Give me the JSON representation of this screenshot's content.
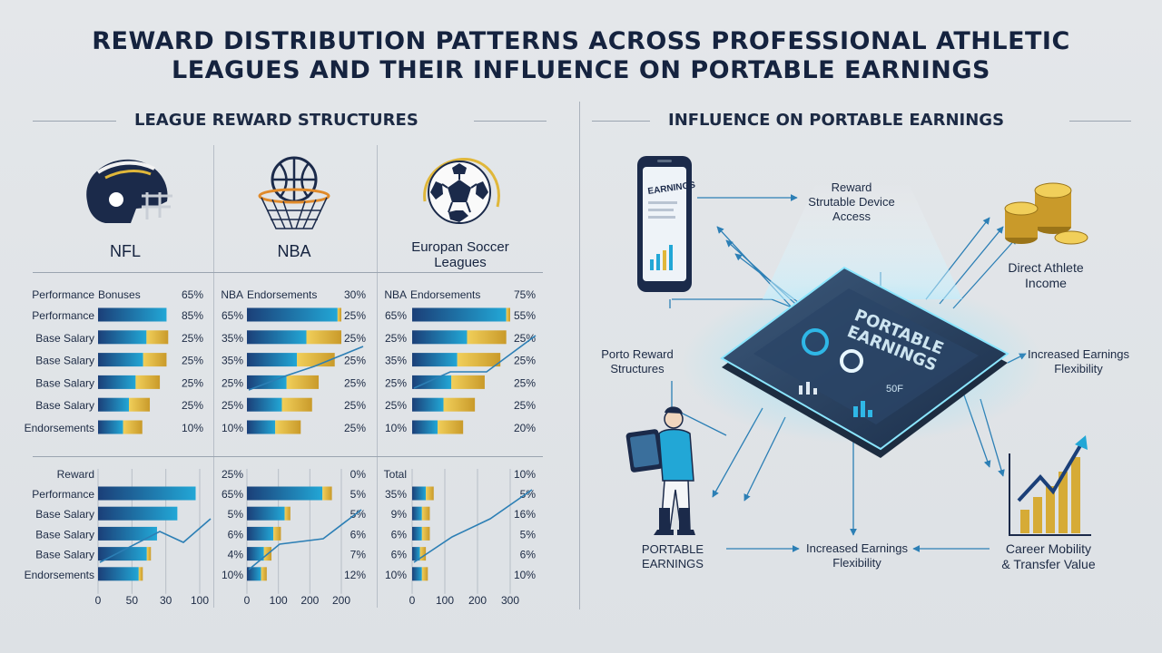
{
  "title": {
    "line1": "REWARD DISTRIBUTION PATTERNS ACROSS PROFESSIONAL ATHLETIC",
    "line2": "LEAGUES AND THEIR INFLUENCE ON PORTABLE EARNINGS"
  },
  "left_section": {
    "heading": "LEAGUE REWARD STRUCTURES"
  },
  "right_section": {
    "heading": "INFLUENCE ON PORTABLE EARNINGS"
  },
  "leagues": {
    "nfl": {
      "name": "NFL",
      "icon": "football-helmet-icon"
    },
    "nba": {
      "name": "NBA",
      "icon": "basketball-hoop-icon"
    },
    "soccer": {
      "name_line1": "Europan Soccer",
      "name_line2": "Leagues",
      "icon": "soccer-ball-icon"
    }
  },
  "colors": {
    "bar_blue": "#1f5f9e",
    "bar_cyan": "#22a7d6",
    "bar_gold": "#e0b73a",
    "navy": "#15233f"
  },
  "chart_data": [
    {
      "type": "bar",
      "panel": "NFL upper",
      "header": {
        "label": "Performance",
        "label2": "Bonuses",
        "pct": "65%"
      },
      "rows": [
        {
          "label": "Performance",
          "pct": "85%",
          "blue": 0.82,
          "gold": 0.0
        },
        {
          "label": "Base Salary",
          "pct": "25%",
          "blue": 0.58,
          "gold": 0.26
        },
        {
          "label": "Base Salary",
          "pct": "25%",
          "blue": 0.54,
          "gold": 0.28
        },
        {
          "label": "Base Salary",
          "pct": "25%",
          "blue": 0.45,
          "gold": 0.29
        },
        {
          "label": "Base Salary",
          "pct": "25%",
          "blue": 0.37,
          "gold": 0.25
        },
        {
          "label": "Endorsements",
          "pct": "10%",
          "blue": 0.3,
          "gold": 0.23
        }
      ]
    },
    {
      "type": "bar",
      "panel": "NBA upper",
      "header": {
        "label": "NBA",
        "label2": "Endorsements",
        "pct": "30%"
      },
      "rows": [
        {
          "label": "65%",
          "pct": "25%",
          "blue": 0.96,
          "gold": 0.04
        },
        {
          "label": "35%",
          "pct": "25%",
          "blue": 0.63,
          "gold": 0.37
        },
        {
          "label": "35%",
          "pct": "25%",
          "blue": 0.53,
          "gold": 0.4
        },
        {
          "label": "25%",
          "pct": "25%",
          "blue": 0.42,
          "gold": 0.34
        },
        {
          "label": "25%",
          "pct": "25%",
          "blue": 0.37,
          "gold": 0.32
        },
        {
          "label": "10%",
          "pct": "25%",
          "blue": 0.3,
          "gold": 0.27
        }
      ]
    },
    {
      "type": "bar",
      "panel": "Soccer upper",
      "header": {
        "label": "NBA",
        "label2": "Endorsements",
        "pct": "75%"
      },
      "rows": [
        {
          "label": "65%",
          "pct": "55%",
          "blue": 0.96,
          "gold": 0.04
        },
        {
          "label": "25%",
          "pct": "25%",
          "blue": 0.56,
          "gold": 0.4
        },
        {
          "label": "35%",
          "pct": "25%",
          "blue": 0.46,
          "gold": 0.44
        },
        {
          "label": "25%",
          "pct": "25%",
          "blue": 0.4,
          "gold": 0.34
        },
        {
          "label": "25%",
          "pct": "25%",
          "blue": 0.32,
          "gold": 0.32
        },
        {
          "label": "10%",
          "pct": "20%",
          "blue": 0.26,
          "gold": 0.26
        }
      ]
    },
    {
      "type": "bar",
      "panel": "NFL lower",
      "header": {
        "label": "Reward"
      },
      "rows": [
        {
          "label": "Performance",
          "value": 96,
          "gold": 0
        },
        {
          "label": "Base Salary",
          "value": 78,
          "gold": 0
        },
        {
          "label": "Base Salary",
          "value": 58,
          "gold": 0
        },
        {
          "label": "Base Salary",
          "value": 48,
          "gold": 4
        },
        {
          "label": "Endorsements",
          "value": 40,
          "gold": 4
        }
      ],
      "xticks": [
        "0",
        "50",
        "30",
        "100"
      ]
    },
    {
      "type": "bar",
      "panel": "NBA lower",
      "header": {
        "label": "25%",
        "pct": "0%"
      },
      "rows": [
        {
          "label": "65%",
          "pct": "5%",
          "blue": 0.8,
          "gold": 0.1
        },
        {
          "label": "5%",
          "pct": "5%",
          "blue": 0.4,
          "gold": 0.06
        },
        {
          "label": "6%",
          "pct": "6%",
          "blue": 0.28,
          "gold": 0.08
        },
        {
          "label": "4%",
          "pct": "7%",
          "blue": 0.18,
          "gold": 0.08
        },
        {
          "label": "10%",
          "pct": "12%",
          "blue": 0.15,
          "gold": 0.06
        }
      ],
      "xticks": [
        "0",
        "100",
        "200",
        "200"
      ]
    },
    {
      "type": "bar",
      "panel": "Soccer lower",
      "header": {
        "label": "Total",
        "pct": "10%"
      },
      "rows": [
        {
          "label": "35%",
          "pct": "5%",
          "blue": 0.14,
          "gold": 0.08
        },
        {
          "label": "9%",
          "pct": "16%",
          "blue": 0.1,
          "gold": 0.08
        },
        {
          "label": "6%",
          "pct": "5%",
          "blue": 0.1,
          "gold": 0.08
        },
        {
          "label": "6%",
          "pct": "6%",
          "blue": 0.08,
          "gold": 0.06
        },
        {
          "label": "10%",
          "pct": "10%",
          "blue": 0.1,
          "gold": 0.06
        }
      ],
      "xticks": [
        "0",
        "100",
        "200",
        "300"
      ]
    }
  ],
  "diagram": {
    "center": {
      "line1": "PORTABLE",
      "line2": "EARNINGS",
      "stat": "50F"
    },
    "phone": {
      "label": "EARNINGS"
    },
    "nodes": {
      "top_center": {
        "line1": "Reward",
        "line2": "Strutable Device",
        "line3": "Access"
      },
      "top_right": {
        "line1": "Direct Athlete",
        "line2": "Income"
      },
      "mid_left": {
        "line1": "Porto Reward",
        "line2": "Structures"
      },
      "mid_right": {
        "line1": "Increased Earnings",
        "line2": "Flexibility"
      },
      "bottom_left": {
        "line1": "PORTABLE",
        "line2": "EARNINGS"
      },
      "bottom_center": {
        "line1": "Increased Earnings",
        "line2": "Flexibility"
      },
      "bottom_right": {
        "line1": "Career Mobility",
        "line2": "& Transfer Value"
      }
    }
  }
}
